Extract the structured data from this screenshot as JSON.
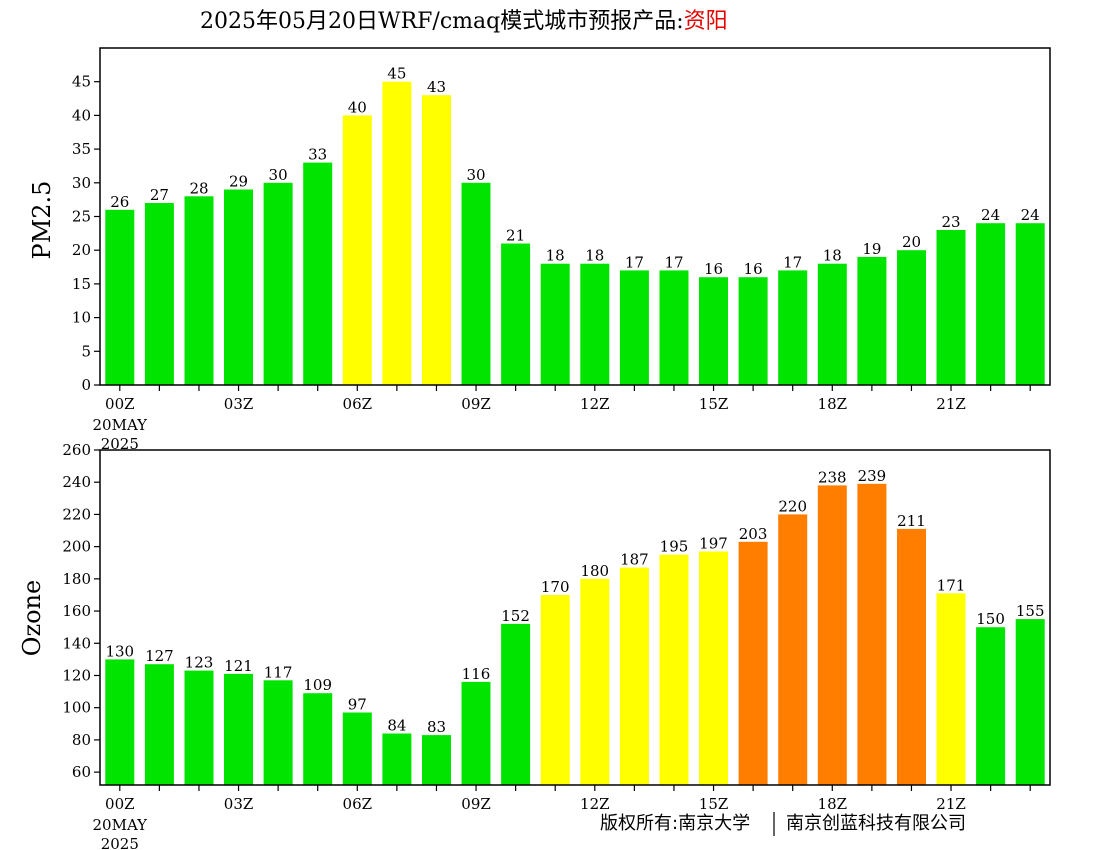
{
  "header": {
    "title_main": "2025年05月20日WRF/cmaq模式城市预报产品:",
    "title_city": "资阳",
    "city_color": "#e60000"
  },
  "footer": {
    "copyright_left": "版权所有:南京大学",
    "copyright_right": "南京创蓝科技有限公司"
  },
  "colors": {
    "green": "#00e400",
    "yellow": "#ffff00",
    "orange": "#ff7e00"
  },
  "chart_data": [
    {
      "type": "bar",
      "ylabel": "PM2.5",
      "ylim": [
        0,
        50
      ],
      "yticks": [
        0,
        5,
        10,
        15,
        20,
        25,
        30,
        35,
        40,
        45
      ],
      "xticks": [
        {
          "index": 0,
          "label": "00Z"
        },
        {
          "index": 3,
          "label": "03Z"
        },
        {
          "index": 6,
          "label": "06Z"
        },
        {
          "index": 9,
          "label": "09Z"
        },
        {
          "index": 12,
          "label": "12Z"
        },
        {
          "index": 15,
          "label": "15Z"
        },
        {
          "index": 18,
          "label": "18Z"
        },
        {
          "index": 21,
          "label": "21Z"
        }
      ],
      "date_label": [
        "20MAY",
        "2025"
      ],
      "values": [
        26,
        27,
        28,
        29,
        30,
        33,
        40,
        45,
        43,
        30,
        21,
        18,
        18,
        17,
        17,
        16,
        16,
        17,
        18,
        19,
        20,
        23,
        24,
        24
      ],
      "level_colors": [
        "green",
        "green",
        "green",
        "green",
        "green",
        "green",
        "yellow",
        "yellow",
        "yellow",
        "green",
        "green",
        "green",
        "green",
        "green",
        "green",
        "green",
        "green",
        "green",
        "green",
        "green",
        "green",
        "green",
        "green",
        "green"
      ]
    },
    {
      "type": "bar",
      "ylabel": "Ozone",
      "ylim": [
        52,
        260
      ],
      "yticks": [
        60,
        80,
        100,
        120,
        140,
        160,
        180,
        200,
        220,
        240,
        260
      ],
      "xticks": [
        {
          "index": 0,
          "label": "00Z"
        },
        {
          "index": 3,
          "label": "03Z"
        },
        {
          "index": 6,
          "label": "06Z"
        },
        {
          "index": 9,
          "label": "09Z"
        },
        {
          "index": 12,
          "label": "12Z"
        },
        {
          "index": 15,
          "label": "15Z"
        },
        {
          "index": 18,
          "label": "18Z"
        },
        {
          "index": 21,
          "label": "21Z"
        }
      ],
      "date_label": [
        "20MAY",
        "2025"
      ],
      "values": [
        130,
        127,
        123,
        121,
        117,
        109,
        97,
        84,
        83,
        116,
        152,
        170,
        180,
        187,
        195,
        197,
        203,
        220,
        238,
        239,
        211,
        171,
        150,
        155
      ],
      "level_colors": [
        "green",
        "green",
        "green",
        "green",
        "green",
        "green",
        "green",
        "green",
        "green",
        "green",
        "green",
        "yellow",
        "yellow",
        "yellow",
        "yellow",
        "yellow",
        "orange",
        "orange",
        "orange",
        "orange",
        "orange",
        "yellow",
        "green",
        "green"
      ]
    }
  ]
}
